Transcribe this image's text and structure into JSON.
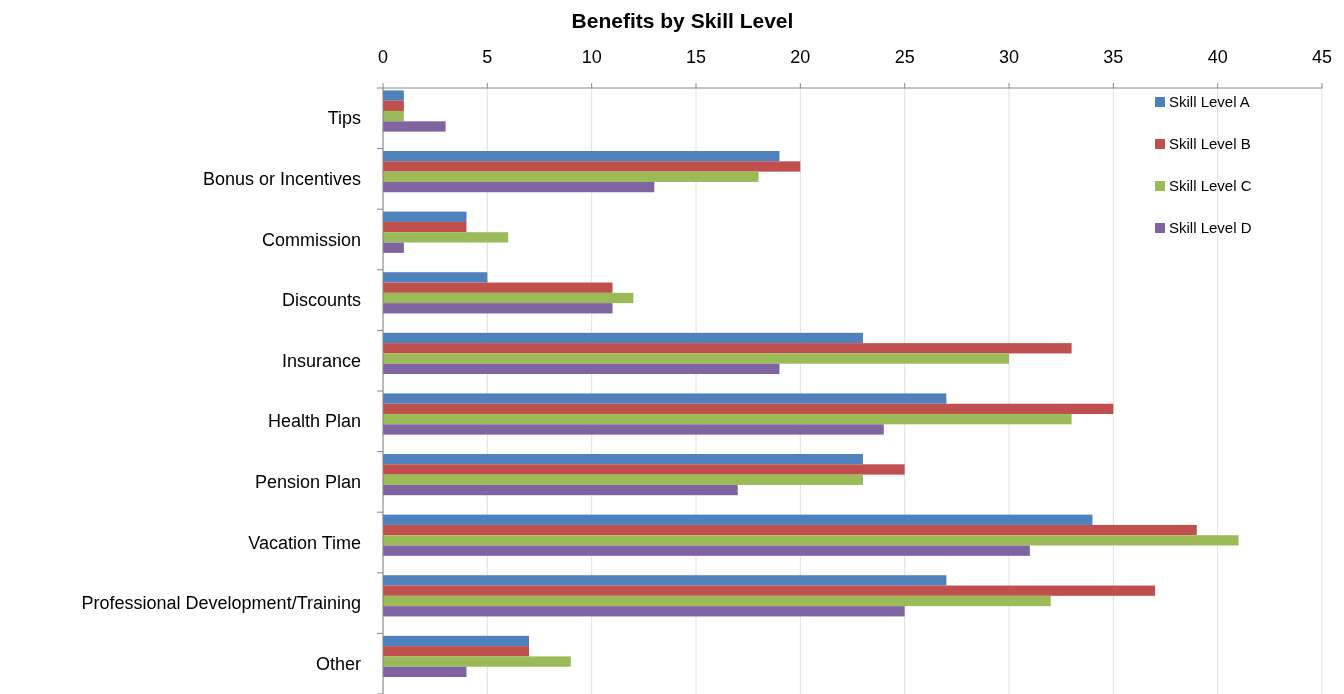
{
  "chart_data": {
    "type": "bar",
    "orientation": "horizontal",
    "title": "Benefits by Skill Level",
    "categories": [
      "Tips",
      "Bonus or Incentives",
      "Commission",
      "Discounts",
      "Insurance",
      "Health Plan",
      "Pension Plan",
      "Vacation Time",
      "Professional Development/Training",
      "Other"
    ],
    "series": [
      {
        "name": "Skill Level A",
        "color": "#4f81bd",
        "values": [
          1,
          19,
          4,
          5,
          23,
          27,
          23,
          34,
          27,
          7
        ]
      },
      {
        "name": "Skill Level B",
        "color": "#c0504d",
        "values": [
          1,
          20,
          4,
          11,
          33,
          35,
          25,
          39,
          37,
          7
        ]
      },
      {
        "name": "Skill Level C",
        "color": "#9bbb59",
        "values": [
          1,
          18,
          6,
          12,
          30,
          33,
          23,
          41,
          32,
          9
        ]
      },
      {
        "name": "Skill Level D",
        "color": "#8064a2",
        "values": [
          3,
          13,
          1,
          11,
          19,
          24,
          17,
          31,
          25,
          4
        ]
      }
    ],
    "xlim": [
      0,
      45
    ],
    "xticks": [
      0,
      5,
      10,
      15,
      20,
      25,
      30,
      35,
      40,
      45
    ],
    "grid": "x",
    "legend": "top right"
  }
}
